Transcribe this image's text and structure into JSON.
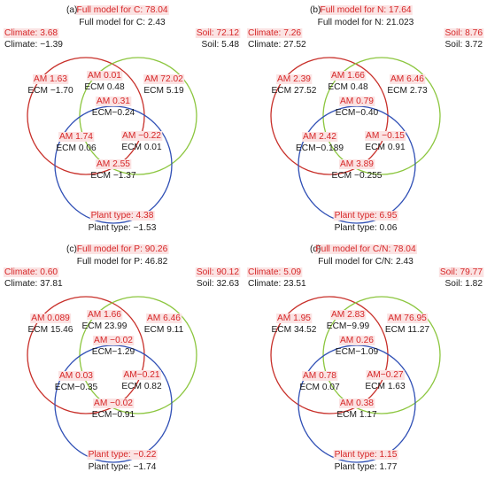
{
  "panels": [
    {
      "id": "a",
      "panel_label": "(a)",
      "full_model_am": "Full model for C: 78.04",
      "full_model_ecm": "Full model for C: 2.43",
      "climate_am": "Climate: 3.68",
      "climate_ecm": "Climate: −1.39",
      "soil_am": "Soil: 72.12",
      "soil_ecm": "Soil: 5.48",
      "plant_am": "Plant type: 4.38",
      "plant_ecm": "Plant type: −1.53",
      "regions": {
        "climate_only": {
          "am": "AM 1.63",
          "ecm": "ECM −1.70"
        },
        "climate_soil": {
          "am": "AM 0.01",
          "ecm": "ECM 0.48"
        },
        "soil_only": {
          "am": "AM 72.02",
          "ecm": "ECM 5.19"
        },
        "center": {
          "am": "AM 0.31",
          "ecm": "ECM−0.24"
        },
        "climate_plant": {
          "am": "AM 1.74",
          "ecm": "ECM 0.06"
        },
        "soil_plant": {
          "am": "AM −0.22",
          "ecm": "ECM 0.01"
        },
        "plant_only": {
          "am": "AM 2.55",
          "ecm": "ECM −1.37"
        }
      }
    },
    {
      "id": "b",
      "panel_label": "(b)",
      "full_model_am": "Full model for N: 17.64",
      "full_model_ecm": "Full model for N: 21.023",
      "climate_am": "Climate: 7.26",
      "climate_ecm": "Climate: 27.52",
      "soil_am": "Soil: 8.76",
      "soil_ecm": "Soil: 3.72",
      "plant_am": "Plant type: 6.95",
      "plant_ecm": "Plant type: 0.06",
      "regions": {
        "climate_only": {
          "am": "AM 2.39",
          "ecm": "ECM 27.52"
        },
        "climate_soil": {
          "am": "AM 1.66",
          "ecm": "ECM 0.48"
        },
        "soil_only": {
          "am": "AM 6.46",
          "ecm": "ECM 2.73"
        },
        "center": {
          "am": "AM 0.79",
          "ecm": "ECM−0.40"
        },
        "climate_plant": {
          "am": "AM 2.42",
          "ecm": "ECM−0.189"
        },
        "soil_plant": {
          "am": "AM −0.15",
          "ecm": "ECM 0.91"
        },
        "plant_only": {
          "am": "AM 3.89",
          "ecm": "ECM −0.255"
        }
      }
    },
    {
      "id": "c",
      "panel_label": "(c)",
      "full_model_am": "Full model for P: 90.26",
      "full_model_ecm": "Full model for P: 46.82",
      "climate_am": "Climate: 0.60",
      "climate_ecm": "Climate: 37.81",
      "soil_am": "Soil: 90.12",
      "soil_ecm": "Soil: 32.63",
      "plant_am": "Plant type: −0.22",
      "plant_ecm": "Plant type: −1.74",
      "regions": {
        "climate_only": {
          "am": "AM 0.089",
          "ecm": "ECM 15.46"
        },
        "climate_soil": {
          "am": "AM 1.66",
          "ecm": "ECM 23.99"
        },
        "soil_only": {
          "am": "AM 6.46",
          "ecm": "ECM 9.11"
        },
        "center": {
          "am": "AM −0.02",
          "ecm": "ECM−1.29"
        },
        "climate_plant": {
          "am": "AM 0.03",
          "ecm": "ECM−0.35"
        },
        "soil_plant": {
          "am": "AM−0.21",
          "ecm": "ECM 0.82"
        },
        "plant_only": {
          "am": "AM −0.02",
          "ecm": "ECM−0.91"
        }
      }
    },
    {
      "id": "d",
      "panel_label": "(d)",
      "full_model_am": "Full model for C/N: 78.04",
      "full_model_ecm": "Full model for C/N: 2.43",
      "climate_am": "Climate: 5.09",
      "climate_ecm": "Climate: 23.51",
      "soil_am": "Soil: 79.77",
      "soil_ecm": "Soil: 1.82",
      "plant_am": "Plant type: 1.15",
      "plant_ecm": "Plant type: 1.77",
      "regions": {
        "climate_only": {
          "am": "AM 1.95",
          "ecm": "ECM 34.52"
        },
        "climate_soil": {
          "am": "AM 2.83",
          "ecm": "ECM−9.99"
        },
        "soil_only": {
          "am": "AM 76.95",
          "ecm": "ECM 11.27"
        },
        "center": {
          "am": "AM 0.26",
          "ecm": "ECM−1.09"
        },
        "climate_plant": {
          "am": "AM 0.78",
          "ecm": "ECM 0.07"
        },
        "soil_plant": {
          "am": "AM−0.27",
          "ecm": "ECM 1.63"
        },
        "plant_only": {
          "am": "AM 0.38",
          "ecm": "ECM 1.17"
        }
      }
    }
  ],
  "colors": {
    "am_text": "#d62728",
    "ecm_text": "#1a1a1a",
    "label_highlight": "#fbe3e3",
    "climate_circle": "#c8302a",
    "soil_circle": "#8cc63f",
    "plant_circle": "#2f4fb5"
  }
}
